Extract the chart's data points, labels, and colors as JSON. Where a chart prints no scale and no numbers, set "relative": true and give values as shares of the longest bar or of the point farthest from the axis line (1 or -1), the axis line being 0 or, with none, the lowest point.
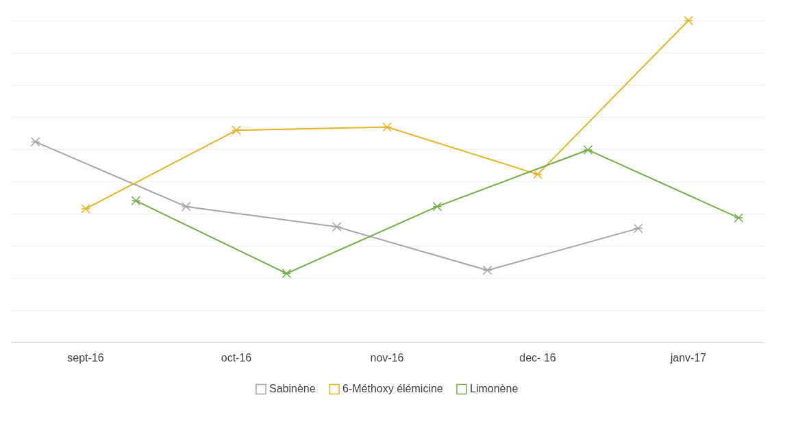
{
  "chart_data": {
    "type": "line",
    "relative": true,
    "categories": [
      "sept-16",
      "oct-16",
      "nov-16",
      "dec- 16",
      "janv-17"
    ],
    "series": [
      {
        "name": "Sabinène",
        "color": "#a5a5a5",
        "values": [
          0.623,
          0.422,
          0.359,
          0.224,
          0.354
        ]
      },
      {
        "name": "6-Méthoxy élémicine",
        "color": "#e6b422",
        "values": [
          0.415,
          0.659,
          0.669,
          0.522,
          1
        ]
      },
      {
        "name": "Limonène",
        "color": "#70ad47",
        "values": [
          0.44,
          0.214,
          0.422,
          0.598,
          0.387
        ]
      }
    ],
    "grid": "y",
    "legend": "bottom",
    "marker": "cross"
  }
}
